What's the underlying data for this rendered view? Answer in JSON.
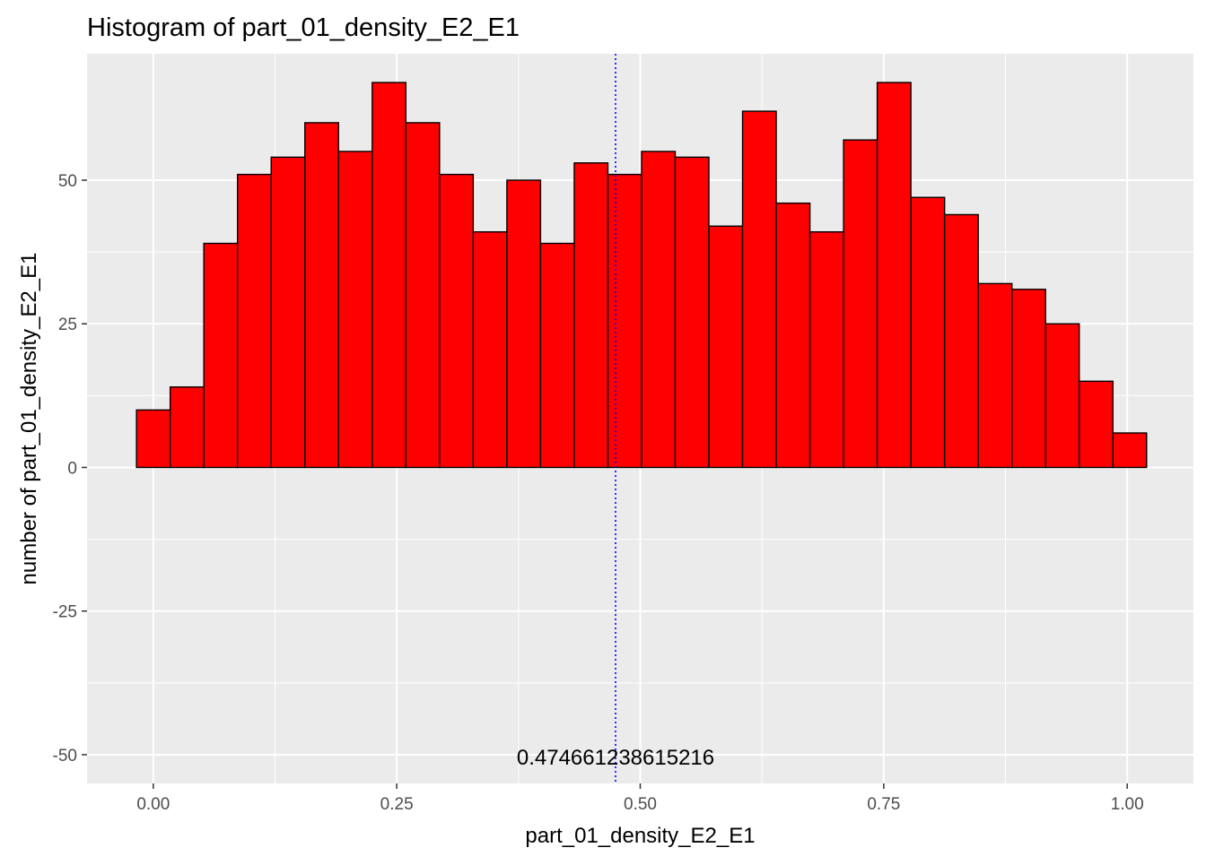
{
  "chart_data": {
    "type": "bar",
    "title": "Histogram of  part_01_density_E2_E1",
    "xlabel": "part_01_density_E2_E1",
    "ylabel": "number of  part_01_density_E2_E1",
    "xlim": [
      -0.068,
      1.068
    ],
    "ylim": [
      -55,
      72
    ],
    "x_ticks": [
      0.0,
      0.25,
      0.5,
      0.75,
      1.0
    ],
    "x_tick_labels": [
      "0.00",
      "0.25",
      "0.50",
      "0.75",
      "1.00"
    ],
    "y_ticks": [
      -50,
      -25,
      0,
      25,
      50
    ],
    "y_tick_labels": [
      "-50",
      "-25",
      "0",
      "25",
      "50"
    ],
    "bin_start": -0.0172,
    "bin_width": 0.03457,
    "counts": [
      10,
      14,
      39,
      51,
      54,
      60,
      55,
      67,
      60,
      51,
      41,
      50,
      39,
      53,
      51,
      55,
      54,
      42,
      62,
      46,
      41,
      57,
      67,
      47,
      44,
      32,
      31,
      25,
      15,
      6
    ],
    "vline": {
      "x": 0.474661238615216,
      "label": "0.474661238615216",
      "label_y": -50,
      "color": "#0000ff",
      "style": "dotted"
    },
    "grid": true,
    "legend": "none",
    "colors": {
      "bar_fill": "#ff0000",
      "bar_stroke": "#000000",
      "panel_bg": "#ebebeb",
      "grid": "#ffffff",
      "tick_text": "#4d4d4d"
    }
  }
}
